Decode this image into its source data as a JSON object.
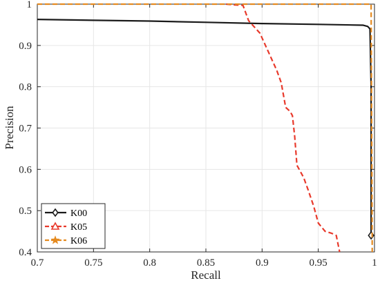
{
  "chart_data": {
    "type": "line",
    "title": "",
    "xlabel": "Recall",
    "ylabel": "Precision",
    "xlim": [
      0.7,
      1.0
    ],
    "ylim": [
      0.4,
      1.0
    ],
    "grid": true,
    "legend_position": "bottom-left",
    "x_ticks": [
      0.7,
      0.75,
      0.8,
      0.85,
      0.9,
      0.95,
      1.0
    ],
    "x_tick_labels": [
      "0.7",
      "0.75",
      "0.8",
      "0.85",
      "0.9",
      "0.95",
      "1"
    ],
    "y_ticks": [
      0.4,
      0.5,
      0.6,
      0.7,
      0.8,
      0.9,
      1.0
    ],
    "y_tick_labels": [
      "0.4",
      "0.5",
      "0.6",
      "0.7",
      "0.8",
      "0.9",
      "1"
    ],
    "series": [
      {
        "name": "K00",
        "color": "#1a1a1a",
        "line_style": "solid",
        "marker": "diamond",
        "points": [
          [
            0.7,
            0.963
          ],
          [
            0.75,
            0.961
          ],
          [
            0.8,
            0.959
          ],
          [
            0.85,
            0.956
          ],
          [
            0.9,
            0.953
          ],
          [
            0.95,
            0.951
          ],
          [
            0.99,
            0.949
          ],
          [
            0.994,
            0.946
          ],
          [
            0.996,
            0.94
          ],
          [
            0.997,
            0.8
          ],
          [
            0.997,
            0.6
          ],
          [
            0.997,
            0.5
          ],
          [
            0.997,
            0.44
          ]
        ],
        "marker_points": [
          [
            0.997,
            0.44
          ]
        ]
      },
      {
        "name": "K05",
        "color": "#e8392b",
        "line_style": "dashed",
        "marker": "triangle",
        "points": [
          [
            0.868,
            1.0
          ],
          [
            0.876,
            0.998
          ],
          [
            0.883,
            0.997
          ],
          [
            0.888,
            0.96
          ],
          [
            0.898,
            0.93
          ],
          [
            0.903,
            0.9
          ],
          [
            0.908,
            0.87
          ],
          [
            0.913,
            0.84
          ],
          [
            0.917,
            0.81
          ],
          [
            0.919,
            0.78
          ],
          [
            0.921,
            0.75
          ],
          [
            0.925,
            0.74
          ],
          [
            0.927,
            0.73
          ],
          [
            0.929,
            0.68
          ],
          [
            0.931,
            0.61
          ],
          [
            0.937,
            0.58
          ],
          [
            0.941,
            0.55
          ],
          [
            0.946,
            0.51
          ],
          [
            0.95,
            0.47
          ],
          [
            0.956,
            0.45
          ],
          [
            0.962,
            0.445
          ],
          [
            0.966,
            0.44
          ],
          [
            0.969,
            0.4
          ]
        ],
        "marker_points": []
      },
      {
        "name": "K06",
        "color": "#e58a1f",
        "line_style": "dashed",
        "marker": "star",
        "points": [
          [
            0.7,
            1.0
          ],
          [
            0.997,
            1.0
          ],
          [
            0.998,
            0.4
          ]
        ],
        "marker_points": []
      }
    ]
  }
}
